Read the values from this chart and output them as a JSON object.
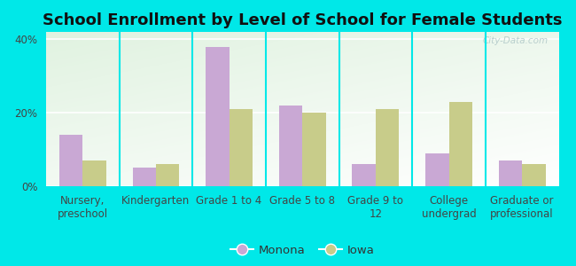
{
  "title": "School Enrollment by Level of School for Female Students",
  "categories": [
    "Nursery,\npreschool",
    "Kindergarten",
    "Grade 1 to 4",
    "Grade 5 to 8",
    "Grade 9 to\n12",
    "College\nundergrad",
    "Graduate or\nprofessional"
  ],
  "monona": [
    14,
    5,
    38,
    22,
    6,
    9,
    7
  ],
  "iowa": [
    7,
    6,
    21,
    20,
    21,
    23,
    6
  ],
  "monona_color": "#c9a8d4",
  "iowa_color": "#c8cc8a",
  "background_outer": "#00e8e8",
  "ylim": [
    0,
    42
  ],
  "yticks": [
    0,
    20,
    40
  ],
  "ytick_labels": [
    "0%",
    "20%",
    "40%"
  ],
  "legend_labels": [
    "Monona",
    "Iowa"
  ],
  "bar_width": 0.32,
  "title_fontsize": 13,
  "tick_fontsize": 8.5,
  "legend_fontsize": 9.5
}
